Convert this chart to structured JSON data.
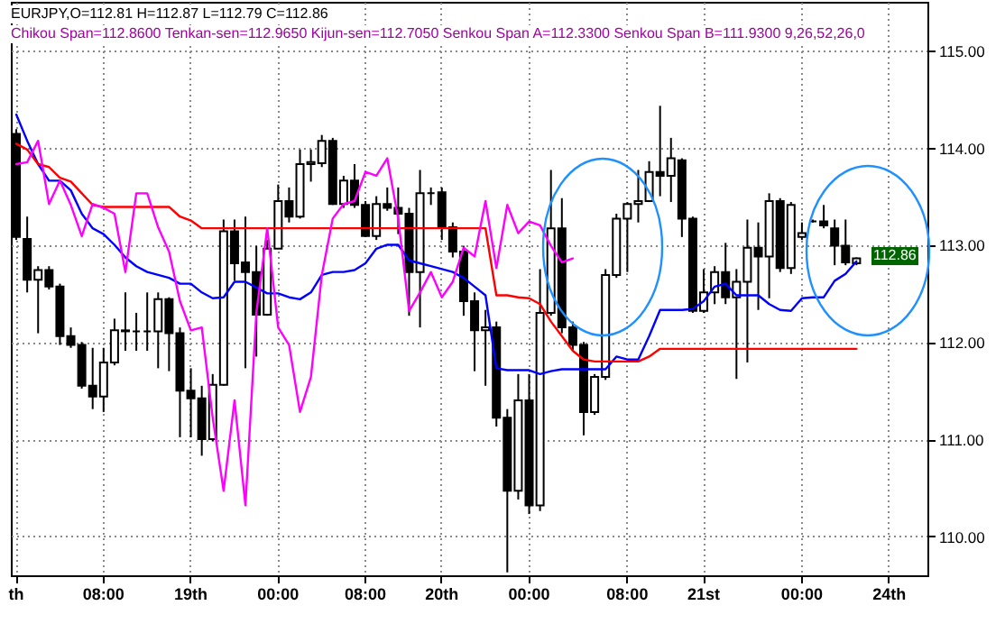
{
  "chart_data": {
    "type": "candlestick",
    "title": "EURJPY,O=112.81 H=112.87 L=112.79 C=112.86",
    "subtitle": "Chikou Span=112.8600 Tenkan-sen=112.9650 Kijun-sen=112.7050 Senkou Span A=112.3300 Senkou Span B=111.9300 9,26,52,26,0",
    "categories": [
      "th",
      null,
      null,
      null,
      null,
      null,
      null,
      null,
      "08:00",
      null,
      null,
      null,
      null,
      null,
      null,
      null,
      "19th",
      null,
      null,
      null,
      null,
      null,
      null,
      null,
      "00:00",
      null,
      null,
      null,
      null,
      null,
      null,
      null,
      "08:00",
      null,
      null,
      null,
      null,
      null,
      null,
      "20th",
      null,
      null,
      null,
      null,
      null,
      null,
      null,
      "00:00",
      null,
      null,
      null,
      null,
      null,
      null,
      null,
      null,
      "08:00",
      null,
      null,
      null,
      null,
      null,
      null,
      "21st",
      null,
      null,
      null,
      null,
      null,
      null,
      null,
      null,
      "00:00",
      null,
      null,
      null,
      null,
      null,
      null,
      null,
      "24th",
      null,
      null,
      null
    ],
    "ohlc": [
      [
        114.14,
        114.19,
        113.05,
        113.08
      ],
      [
        113.06,
        113.29,
        112.51,
        112.64
      ],
      [
        112.64,
        112.78,
        112.09,
        112.74
      ],
      [
        112.74,
        112.78,
        112.54,
        112.57
      ],
      [
        112.57,
        112.6,
        111.97,
        112.06
      ],
      [
        112.06,
        112.15,
        111.94,
        111.97
      ],
      [
        111.97,
        112.0,
        111.52,
        111.55
      ],
      [
        111.55,
        111.94,
        111.31,
        111.44
      ],
      [
        111.44,
        111.94,
        111.28,
        111.79
      ],
      [
        111.79,
        112.24,
        111.76,
        112.12
      ],
      [
        112.12,
        112.51,
        111.91,
        112.11
      ],
      [
        112.11,
        112.3,
        111.91,
        112.11
      ],
      [
        112.11,
        112.51,
        111.91,
        112.11
      ],
      [
        112.11,
        112.51,
        111.73,
        112.44
      ],
      [
        112.44,
        112.46,
        111.7,
        112.09
      ],
      [
        112.09,
        112.15,
        111.02,
        111.5
      ],
      [
        111.5,
        111.73,
        111.02,
        111.42
      ],
      [
        111.42,
        111.55,
        110.83,
        111.0
      ],
      [
        111.0,
        111.67,
        110.98,
        111.56
      ],
      [
        111.56,
        113.26,
        111.55,
        113.14
      ],
      [
        113.14,
        113.26,
        112.63,
        112.81
      ],
      [
        112.82,
        113.29,
        111.73,
        112.72
      ],
      [
        112.72,
        112.99,
        111.85,
        112.28
      ],
      [
        112.28,
        113.05,
        112.27,
        112.96
      ],
      [
        112.96,
        113.62,
        112.96,
        113.45
      ],
      [
        113.45,
        113.59,
        113.23,
        113.29
      ],
      [
        113.29,
        113.98,
        113.27,
        113.83
      ],
      [
        113.83,
        113.98,
        113.65,
        113.85
      ],
      [
        113.84,
        114.13,
        113.8,
        114.07
      ],
      [
        114.07,
        114.1,
        113.41,
        113.42
      ],
      [
        113.42,
        113.71,
        113.38,
        113.66
      ],
      [
        113.66,
        113.83,
        113.38,
        113.41
      ],
      [
        113.41,
        113.45,
        113.08,
        113.09
      ],
      [
        113.09,
        113.5,
        113.05,
        113.42
      ],
      [
        113.42,
        113.59,
        113.35,
        113.38
      ],
      [
        113.38,
        113.59,
        113.11,
        113.32
      ],
      [
        113.32,
        113.38,
        112.27,
        112.72
      ],
      [
        112.72,
        113.77,
        112.15,
        113.53
      ],
      [
        113.53,
        113.59,
        113.41,
        113.53
      ],
      [
        113.54,
        113.59,
        113.05,
        113.18
      ],
      [
        113.18,
        113.23,
        112.87,
        112.93
      ],
      [
        112.93,
        112.99,
        112.27,
        112.42
      ],
      [
        112.42,
        112.51,
        111.7,
        112.12
      ],
      [
        112.12,
        112.33,
        111.55,
        112.15
      ],
      [
        112.15,
        112.21,
        111.13,
        111.22
      ],
      [
        111.22,
        111.31,
        109.63,
        110.47
      ],
      [
        110.47,
        111.67,
        110.38,
        111.4
      ],
      [
        111.4,
        111.67,
        110.23,
        110.32
      ],
      [
        110.32,
        112.75,
        110.26,
        112.3
      ],
      [
        112.3,
        113.77,
        112.27,
        113.17
      ],
      [
        113.17,
        113.48,
        112.09,
        112.15
      ],
      [
        112.15,
        112.21,
        111.91,
        111.97
      ],
      [
        111.97,
        112.0,
        111.04,
        111.28
      ],
      [
        111.28,
        111.67,
        111.25,
        111.64
      ],
      [
        111.64,
        112.75,
        111.61,
        112.69
      ],
      [
        112.69,
        113.32,
        112.66,
        113.27
      ],
      [
        113.27,
        113.44,
        112.72,
        113.42
      ],
      [
        113.42,
        113.77,
        113.23,
        113.45
      ],
      [
        113.45,
        113.86,
        113.44,
        113.75
      ],
      [
        113.75,
        114.43,
        113.5,
        113.71
      ],
      [
        113.71,
        114.1,
        113.44,
        113.89
      ],
      [
        113.87,
        113.89,
        113.08,
        113.27
      ],
      [
        113.27,
        113.29,
        112.3,
        112.32
      ],
      [
        112.32,
        112.75,
        112.3,
        112.51
      ],
      [
        112.51,
        112.78,
        112.39,
        112.72
      ],
      [
        112.72,
        113.02,
        112.39,
        112.46
      ],
      [
        112.46,
        112.75,
        111.62,
        112.62
      ],
      [
        112.62,
        113.26,
        111.79,
        112.97
      ],
      [
        112.97,
        113.23,
        112.33,
        112.88
      ],
      [
        112.88,
        113.53,
        112.45,
        113.45
      ],
      [
        113.45,
        113.48,
        112.72,
        112.76
      ],
      [
        112.76,
        113.44,
        112.7,
        113.41
      ],
      [
        113.08,
        113.23,
        113.05,
        113.12
      ],
      [
        113.24,
        113.26,
        113.23,
        113.24
      ],
      [
        113.24,
        113.41,
        113.17,
        113.2
      ],
      [
        113.17,
        113.26,
        112.79,
        112.99
      ],
      [
        112.99,
        113.26,
        112.79,
        112.82
      ],
      [
        112.81,
        112.87,
        112.79,
        112.86
      ],
      null,
      null,
      null,
      null,
      null,
      null
    ],
    "series": [
      {
        "type": "line",
        "color": "#0000ff",
        "values": [
          114.34,
          114.07,
          113.83,
          113.66,
          113.66,
          113.56,
          113.32,
          113.17,
          113.11,
          113.0,
          112.87,
          112.78,
          112.72,
          112.69,
          112.66,
          112.6,
          112.6,
          112.51,
          112.45,
          112.46,
          112.62,
          112.62,
          112.56,
          112.5,
          112.5,
          112.46,
          112.44,
          112.51,
          112.69,
          112.72,
          112.72,
          112.74,
          112.81,
          112.96,
          113.0,
          113.0,
          112.84,
          112.81,
          112.78,
          112.75,
          112.72,
          112.66,
          112.57,
          112.48,
          111.73,
          111.71,
          111.71,
          111.71,
          111.67,
          111.7,
          111.72,
          111.72,
          111.72,
          111.72,
          111.72,
          111.85,
          111.82,
          111.82,
          112.06,
          112.33,
          112.33,
          112.33,
          112.34,
          112.42,
          112.57,
          112.6,
          112.48,
          112.48,
          112.48,
          112.39,
          112.33,
          112.32,
          112.45,
          112.46,
          112.46,
          112.63,
          112.7,
          112.83,
          null,
          null,
          null,
          null,
          null,
          null
        ]
      },
      {
        "type": "line",
        "color": "#ff0000",
        "values": [
          114.04,
          113.98,
          113.83,
          113.8,
          113.69,
          113.65,
          113.53,
          113.41,
          113.39,
          113.39,
          113.39,
          113.39,
          113.39,
          113.39,
          113.39,
          113.29,
          113.25,
          113.17,
          113.17,
          113.17,
          113.17,
          113.17,
          113.17,
          113.17,
          113.17,
          113.17,
          113.17,
          113.17,
          113.17,
          113.17,
          113.17,
          113.17,
          113.17,
          113.17,
          113.17,
          113.17,
          113.17,
          113.17,
          113.17,
          113.17,
          113.17,
          113.17,
          113.17,
          113.17,
          112.48,
          112.48,
          112.46,
          112.45,
          112.39,
          112.21,
          112.06,
          111.91,
          111.82,
          111.8,
          111.8,
          111.8,
          111.8,
          111.8,
          111.85,
          111.93,
          111.93,
          111.93,
          111.93,
          111.93,
          111.93,
          111.93,
          111.93,
          111.93,
          111.93,
          111.93,
          111.93,
          111.93,
          111.93,
          111.93,
          111.93,
          111.93,
          111.93,
          111.93,
          null,
          null,
          null,
          null,
          null,
          null
        ]
      },
      {
        "type": "line",
        "color": "#ff00ff",
        "values": [
          113.83,
          113.85,
          114.07,
          113.42,
          113.66,
          113.41,
          113.09,
          113.42,
          113.38,
          113.32,
          112.72,
          113.53,
          113.53,
          113.18,
          112.93,
          112.42,
          112.12,
          112.15,
          111.22,
          110.47,
          111.4,
          110.32,
          112.3,
          113.17,
          112.15,
          111.97,
          111.28,
          111.64,
          112.69,
          113.27,
          113.42,
          113.45,
          113.75,
          113.71,
          113.89,
          113.27,
          112.32,
          112.51,
          112.72,
          112.46,
          112.62,
          112.97,
          112.88,
          113.45,
          112.76,
          113.41,
          113.12,
          113.24,
          113.2,
          112.99,
          112.82,
          112.86,
          null,
          null,
          null,
          null,
          null,
          null,
          null,
          null,
          null,
          null,
          null,
          null,
          null,
          null,
          null,
          null,
          null,
          null,
          null,
          null,
          null,
          null,
          null,
          null,
          null,
          null,
          null,
          null,
          null,
          null,
          null,
          null
        ]
      }
    ],
    "ylim": [
      109.6,
      115.5
    ],
    "yticks": [
      {
        "value": 110,
        "label": "110.00"
      },
      {
        "value": 111,
        "label": "111.00"
      },
      {
        "value": 112,
        "label": "112.00"
      },
      {
        "value": 113,
        "label": "113.00"
      },
      {
        "value": 114,
        "label": "114.00"
      },
      {
        "value": 115,
        "label": "115.00"
      }
    ],
    "annotations": [
      "112.86"
    ],
    "grid": true
  }
}
